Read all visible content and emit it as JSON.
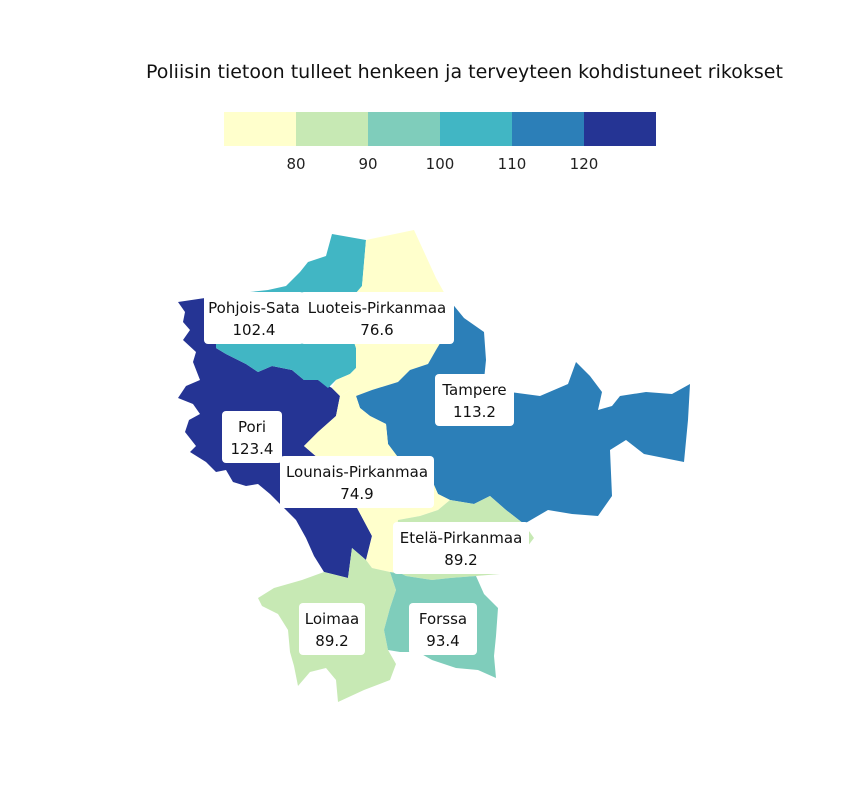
{
  "title": "Poliisin tietoon tulleet henkeen ja terveyteen kohdistuneet rikokset",
  "colors": {
    "c70": "#ffffcc",
    "c80": "#c7e9b4",
    "c90": "#7fcdbb",
    "c100": "#41b6c4",
    "c110": "#2c7fb8",
    "c120": "#253494"
  },
  "legend": {
    "bins": [
      {
        "color": "#ffffcc"
      },
      {
        "color": "#c7e9b4"
      },
      {
        "color": "#7fcdbb"
      },
      {
        "color": "#41b6c4"
      },
      {
        "color": "#2c7fb8"
      },
      {
        "color": "#253494"
      }
    ],
    "ticks": [
      "80",
      "90",
      "100",
      "110",
      "120"
    ]
  },
  "regions": [
    {
      "name": "Pohjois-Satakunta",
      "label": "Pohjois-Sata",
      "value": 102.4,
      "color": "#41b6c4"
    },
    {
      "name": "Luoteis-Pirkanmaa",
      "label": "Luoteis-Pirkanmaa",
      "value": 76.6,
      "color": "#ffffcc"
    },
    {
      "name": "Tampere",
      "label": "Tampere",
      "value": 113.2,
      "color": "#2c7fb8"
    },
    {
      "name": "Pori",
      "label": "Pori",
      "value": 123.4,
      "color": "#253494"
    },
    {
      "name": "Lounais-Pirkanmaa",
      "label": "Lounais-Pirkanmaa",
      "value": 74.9,
      "color": "#ffffcc"
    },
    {
      "name": "Etelä-Pirkanmaa",
      "label": "Etelä-Pirkanmaa",
      "value": 89.2,
      "color": "#c7e9b4"
    },
    {
      "name": "Loimaa",
      "label": "Loimaa",
      "value": 89.2,
      "color": "#c7e9b4"
    },
    {
      "name": "Forssa",
      "label": "Forssa",
      "value": 93.4,
      "color": "#7fcdbb"
    }
  ]
}
